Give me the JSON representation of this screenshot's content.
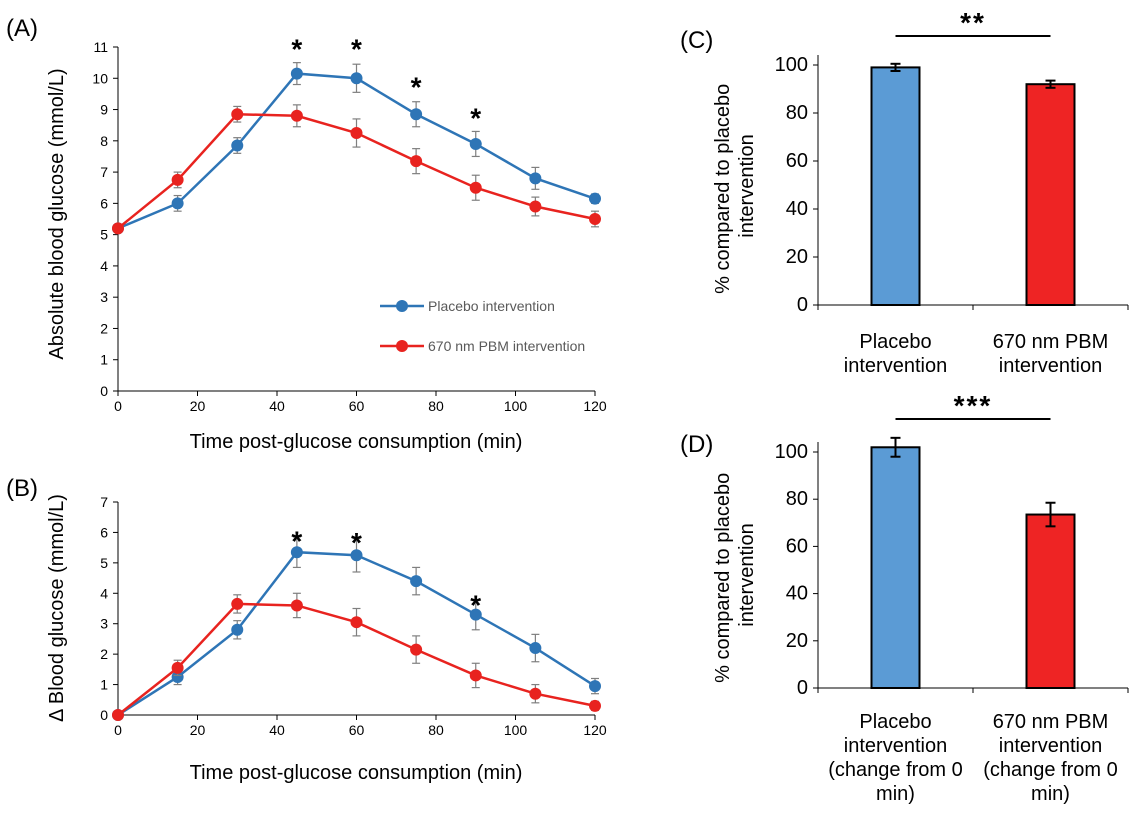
{
  "colors": {
    "placebo": "#2E75B6",
    "pbm": "#E8231F",
    "placebo_bar": "#5B9BD5",
    "pbm_bar": "#EE2424",
    "error": "#7F7F7F"
  },
  "panel_labels": {
    "a": "(A)",
    "b": "(B)",
    "c": "(C)",
    "d": "(D)"
  },
  "chart_data": [
    {
      "id": "A",
      "type": "line",
      "xlabel": "Time post-glucose consumption (min)",
      "ylabel": "Absolute blood glucose (mmol/L)",
      "xlim": [
        0,
        120
      ],
      "ylim": [
        0,
        11
      ],
      "xticks": [
        0,
        20,
        40,
        60,
        80,
        100,
        120
      ],
      "yticks": [
        0,
        1,
        2,
        3,
        4,
        5,
        6,
        7,
        8,
        9,
        10,
        11
      ],
      "legend_position": "bottom-right",
      "x": [
        0,
        15,
        30,
        45,
        60,
        75,
        90,
        105,
        120
      ],
      "series": [
        {
          "name": "Placebo intervention",
          "color_key": "placebo",
          "values": [
            5.2,
            6.0,
            7.85,
            10.15,
            10.0,
            8.85,
            7.9,
            6.8,
            6.15
          ],
          "errors": [
            0.1,
            0.25,
            0.25,
            0.35,
            0.45,
            0.4,
            0.4,
            0.35,
            0.15
          ]
        },
        {
          "name": "670 nm PBM intervention",
          "color_key": "pbm",
          "values": [
            5.2,
            6.75,
            8.85,
            8.8,
            8.25,
            7.35,
            6.5,
            5.9,
            5.5
          ],
          "errors": [
            0.1,
            0.25,
            0.25,
            0.35,
            0.45,
            0.4,
            0.4,
            0.3,
            0.25
          ]
        }
      ],
      "significance": [
        {
          "x": 45,
          "label": "*",
          "y": 11.2
        },
        {
          "x": 60,
          "label": "*",
          "y": 11.2
        },
        {
          "x": 75,
          "label": "*",
          "y": 10.0
        },
        {
          "x": 90,
          "label": "*",
          "y": 9.0
        }
      ]
    },
    {
      "id": "B",
      "type": "line",
      "xlabel": "Time post-glucose consumption (min)",
      "ylabel": "Δ Blood glucose (mmol/L)",
      "xlim": [
        0,
        120
      ],
      "ylim": [
        0,
        7
      ],
      "xticks": [
        0,
        20,
        40,
        60,
        80,
        100,
        120
      ],
      "yticks": [
        0,
        1,
        2,
        3,
        4,
        5,
        6,
        7
      ],
      "x": [
        0,
        15,
        30,
        45,
        60,
        75,
        90,
        105,
        120
      ],
      "series": [
        {
          "name": "Placebo intervention",
          "color_key": "placebo",
          "values": [
            0,
            1.25,
            2.8,
            5.35,
            5.25,
            4.4,
            3.3,
            2.2,
            0.95
          ],
          "errors": [
            0,
            0.25,
            0.3,
            0.5,
            0.55,
            0.45,
            0.5,
            0.45,
            0.25
          ]
        },
        {
          "name": "670 nm PBM intervention",
          "color_key": "pbm",
          "values": [
            0,
            1.55,
            3.65,
            3.6,
            3.05,
            2.15,
            1.3,
            0.7,
            0.3
          ],
          "errors": [
            0,
            0.25,
            0.3,
            0.4,
            0.45,
            0.45,
            0.4,
            0.3,
            0.15
          ]
        }
      ],
      "significance": [
        {
          "x": 45,
          "label": "*",
          "y": 6.0
        },
        {
          "x": 60,
          "label": "*",
          "y": 5.95
        },
        {
          "x": 90,
          "label": "*",
          "y": 3.9
        }
      ]
    },
    {
      "id": "C",
      "type": "bar",
      "ylabel": "% compared to placebo intervention",
      "ylim": [
        0,
        100
      ],
      "yticks": [
        0,
        20,
        40,
        60,
        80,
        100
      ],
      "categories": [
        "Placebo intervention",
        "670 nm PBM intervention"
      ],
      "category_lines": [
        [
          "Placebo",
          "intervention"
        ],
        [
          "670 nm PBM",
          "intervention"
        ]
      ],
      "values": [
        99,
        92
      ],
      "errors": [
        1.5,
        1.5
      ],
      "bar_color_keys": [
        "placebo_bar",
        "pbm_bar"
      ],
      "significance": "**"
    },
    {
      "id": "D",
      "type": "bar",
      "ylabel": "% compared to placebo intervention",
      "ylim": [
        0,
        100
      ],
      "yticks": [
        0,
        20,
        40,
        60,
        80,
        100
      ],
      "categories": [
        "Placebo intervention (change from 0 min)",
        "670 nm PBM intervention (change from 0 min)"
      ],
      "category_lines": [
        [
          "Placebo",
          "intervention",
          "(change from 0",
          "min)"
        ],
        [
          "670 nm PBM",
          "intervention",
          "(change from 0",
          "min)"
        ]
      ],
      "values": [
        102,
        73.5
      ],
      "errors": [
        4,
        5
      ],
      "bar_color_keys": [
        "placebo_bar",
        "pbm_bar"
      ],
      "significance": "***"
    }
  ]
}
